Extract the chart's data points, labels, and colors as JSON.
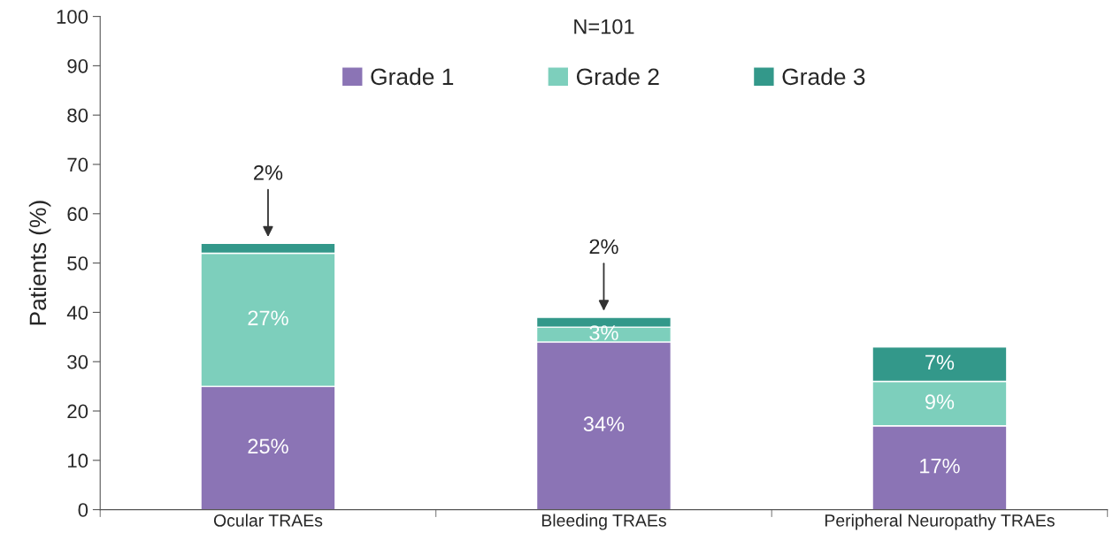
{
  "chart_data": {
    "type": "bar",
    "stacked": true,
    "title": "N=101",
    "ylabel": "Patients (%)",
    "categories": [
      "Ocular TRAEs",
      "Bleeding TRAEs",
      "Peripheral Neuropathy TRAEs"
    ],
    "series": [
      {
        "name": "Grade 1",
        "color": "#8b74b5",
        "values": [
          25,
          34,
          17
        ],
        "value_labels": [
          "25%",
          "34%",
          "17%"
        ]
      },
      {
        "name": "Grade 2",
        "color": "#7dcfbc",
        "values": [
          27,
          3,
          9
        ],
        "value_labels": [
          "27%",
          "3%",
          "9%"
        ]
      },
      {
        "name": "Grade 3",
        "color": "#33988a",
        "values": [
          2,
          2,
          7
        ],
        "value_labels": [
          "2%",
          "2%",
          "7%"
        ]
      }
    ],
    "ylim": [
      0,
      100
    ],
    "yticks": [
      0,
      10,
      20,
      30,
      40,
      50,
      60,
      70,
      80,
      90,
      100
    ],
    "legend": "top",
    "grid": false
  }
}
